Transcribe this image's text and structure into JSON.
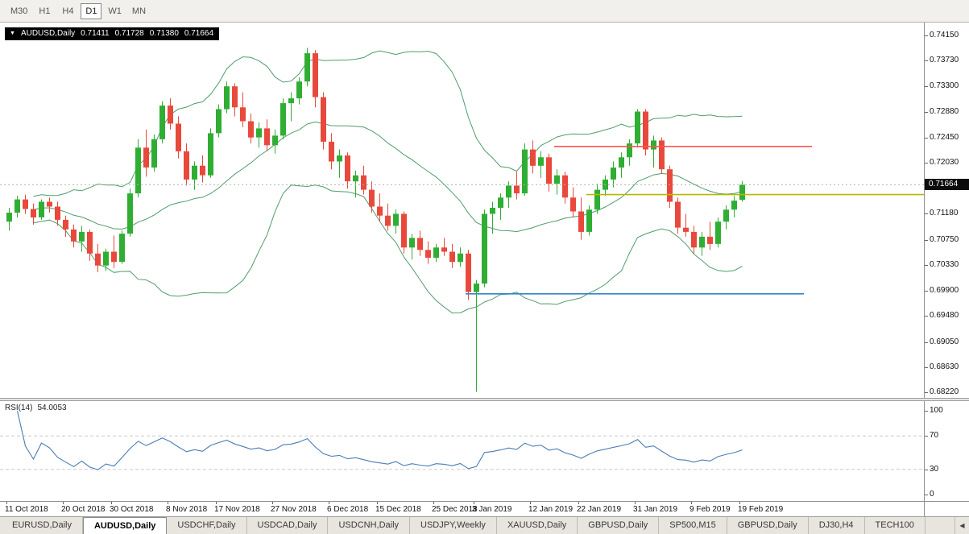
{
  "toolbar": {
    "timeframes": [
      "M30",
      "H1",
      "H4",
      "D1",
      "W1",
      "MN"
    ],
    "active_timeframe": "D1"
  },
  "chart_header": {
    "dropdown_icon": "▼",
    "symbol": "AUDUSD,Daily",
    "open": "0.71411",
    "high": "0.71728",
    "low": "0.71380",
    "close": "0.71664"
  },
  "rsi_panel": {
    "name": "RSI(14)",
    "value": "54.0053"
  },
  "tabs": {
    "items": [
      "EURUSD,Daily",
      "AUDUSD,Daily",
      "USDCHF,Daily",
      "USDCAD,Daily",
      "USDCNH,Daily",
      "USDJPY,Weekly",
      "XAUUSD,Daily",
      "GBPUSD,Daily",
      "SP500,M15",
      "GBPUSD,Daily",
      "DJ30,H4",
      "TECH100"
    ],
    "active_index": 1,
    "active": "AUDUSD,Daily",
    "scroll_left_icon": "◀"
  },
  "chart_data": {
    "type": "candlestick",
    "symbol": "AUDUSD",
    "timeframe": "Daily",
    "ylim": [
      0.6812,
      0.7436
    ],
    "layout": {
      "x0": 8,
      "dx": 10,
      "body_width": 7
    },
    "colors": {
      "up": "#2fae33",
      "down": "#e8493c"
    },
    "y_axis": {
      "labels": [
        "0.74150",
        "0.73730",
        "0.73300",
        "0.72880",
        "0.72450",
        "0.72030",
        "0.71180",
        "0.70750",
        "0.70330",
        "0.69900",
        "0.69480",
        "0.69050",
        "0.68630",
        "0.68220"
      ],
      "current_price": "0.71664"
    },
    "x_axis": {
      "labels": [
        {
          "i": 0,
          "text": "11 Oct 2018"
        },
        {
          "i": 7,
          "text": "20 Oct 2018"
        },
        {
          "i": 13,
          "text": "30 Oct 2018"
        },
        {
          "i": 20,
          "text": "8 Nov 2018"
        },
        {
          "i": 26,
          "text": "17 Nov 2018"
        },
        {
          "i": 33,
          "text": "27 Nov 2018"
        },
        {
          "i": 40,
          "text": "6 Dec 2018"
        },
        {
          "i": 46,
          "text": "15 Dec 2018"
        },
        {
          "i": 53,
          "text": "25 Dec 2018"
        },
        {
          "i": 58,
          "text": "3 Jan 2019"
        },
        {
          "i": 65,
          "text": "12 Jan 2019"
        },
        {
          "i": 71,
          "text": "22 Jan 2019"
        },
        {
          "i": 78,
          "text": "31 Jan 2019"
        },
        {
          "i": 85,
          "text": "9 Feb 2019"
        },
        {
          "i": 91,
          "text": "19 Feb 2019"
        }
      ]
    },
    "candles": [
      [
        0.7105,
        0.7128,
        0.709,
        0.712
      ],
      [
        0.712,
        0.7148,
        0.7112,
        0.7142
      ],
      [
        0.7142,
        0.715,
        0.7118,
        0.7126
      ],
      [
        0.7126,
        0.7135,
        0.71,
        0.7112
      ],
      [
        0.7112,
        0.7142,
        0.7108,
        0.7138
      ],
      [
        0.7138,
        0.7145,
        0.712,
        0.713
      ],
      [
        0.713,
        0.7138,
        0.7098,
        0.7108
      ],
      [
        0.7108,
        0.7115,
        0.708,
        0.7092
      ],
      [
        0.7092,
        0.71,
        0.7062,
        0.7072
      ],
      [
        0.7072,
        0.7098,
        0.7055,
        0.7088
      ],
      [
        0.7088,
        0.7092,
        0.704,
        0.7052
      ],
      [
        0.7052,
        0.7068,
        0.7021,
        0.7032
      ],
      [
        0.7032,
        0.706,
        0.7023,
        0.7055
      ],
      [
        0.7055,
        0.7082,
        0.7028,
        0.7038
      ],
      [
        0.7038,
        0.709,
        0.7035,
        0.7085
      ],
      [
        0.7085,
        0.716,
        0.708,
        0.7152
      ],
      [
        0.7152,
        0.7242,
        0.7145,
        0.7228
      ],
      [
        0.7228,
        0.7258,
        0.718,
        0.7195
      ],
      [
        0.7195,
        0.725,
        0.7188,
        0.7242
      ],
      [
        0.7242,
        0.7305,
        0.7235,
        0.7298
      ],
      [
        0.7298,
        0.731,
        0.7258,
        0.7268
      ],
      [
        0.7268,
        0.728,
        0.721,
        0.7222
      ],
      [
        0.7222,
        0.7235,
        0.7165,
        0.7175
      ],
      [
        0.7175,
        0.7205,
        0.7158,
        0.7198
      ],
      [
        0.7198,
        0.7215,
        0.717,
        0.7182
      ],
      [
        0.7182,
        0.726,
        0.7178,
        0.7252
      ],
      [
        0.7252,
        0.73,
        0.7245,
        0.7292
      ],
      [
        0.7292,
        0.7338,
        0.7285,
        0.733
      ],
      [
        0.733,
        0.7335,
        0.728,
        0.7295
      ],
      [
        0.7295,
        0.732,
        0.7262,
        0.7272
      ],
      [
        0.7272,
        0.7285,
        0.7235,
        0.7245
      ],
      [
        0.7245,
        0.727,
        0.7228,
        0.726
      ],
      [
        0.726,
        0.7275,
        0.7222,
        0.7232
      ],
      [
        0.7232,
        0.7258,
        0.7218,
        0.7248
      ],
      [
        0.7248,
        0.731,
        0.7242,
        0.7302
      ],
      [
        0.7302,
        0.732,
        0.7272,
        0.731
      ],
      [
        0.731,
        0.7345,
        0.73,
        0.7338
      ],
      [
        0.7338,
        0.7394,
        0.733,
        0.7385
      ],
      [
        0.7385,
        0.739,
        0.7295,
        0.7312
      ],
      [
        0.7312,
        0.732,
        0.7225,
        0.7238
      ],
      [
        0.7238,
        0.7252,
        0.7192,
        0.7205
      ],
      [
        0.7205,
        0.7225,
        0.7178,
        0.7215
      ],
      [
        0.7215,
        0.722,
        0.716,
        0.7172
      ],
      [
        0.7172,
        0.719,
        0.7145,
        0.7182
      ],
      [
        0.7182,
        0.7198,
        0.715,
        0.7158
      ],
      [
        0.7158,
        0.7172,
        0.712,
        0.713
      ],
      [
        0.713,
        0.7152,
        0.7105,
        0.7115
      ],
      [
        0.7115,
        0.7135,
        0.709,
        0.7098
      ],
      [
        0.7098,
        0.7125,
        0.7085,
        0.7118
      ],
      [
        0.7118,
        0.7122,
        0.7052,
        0.7062
      ],
      [
        0.7062,
        0.7085,
        0.7042,
        0.7078
      ],
      [
        0.7078,
        0.709,
        0.7048,
        0.7058
      ],
      [
        0.7058,
        0.7072,
        0.7035,
        0.7045
      ],
      [
        0.7045,
        0.7068,
        0.7038,
        0.7062
      ],
      [
        0.7062,
        0.7078,
        0.7048,
        0.7055
      ],
      [
        0.7055,
        0.7068,
        0.7028,
        0.7038
      ],
      [
        0.7038,
        0.7062,
        0.703,
        0.7052
      ],
      [
        0.7052,
        0.7058,
        0.6975,
        0.6988
      ],
      [
        0.6988,
        0.7008,
        0.6822,
        0.7002
      ],
      [
        0.7002,
        0.7125,
        0.6996,
        0.7118
      ],
      [
        0.7118,
        0.7138,
        0.7085,
        0.7128
      ],
      [
        0.7128,
        0.7152,
        0.7108,
        0.7145
      ],
      [
        0.7145,
        0.7172,
        0.7128,
        0.7165
      ],
      [
        0.7165,
        0.7188,
        0.7142,
        0.7152
      ],
      [
        0.7152,
        0.7235,
        0.7148,
        0.7225
      ],
      [
        0.7225,
        0.724,
        0.7185,
        0.7198
      ],
      [
        0.7198,
        0.7222,
        0.7178,
        0.7212
      ],
      [
        0.7212,
        0.7218,
        0.7155,
        0.7168
      ],
      [
        0.7168,
        0.7192,
        0.715,
        0.7182
      ],
      [
        0.7182,
        0.7188,
        0.7135,
        0.7145
      ],
      [
        0.7145,
        0.7162,
        0.7112,
        0.7122
      ],
      [
        0.7122,
        0.7145,
        0.7075,
        0.7088
      ],
      [
        0.7088,
        0.7132,
        0.7082,
        0.7125
      ],
      [
        0.7125,
        0.7168,
        0.7118,
        0.7158
      ],
      [
        0.7158,
        0.7182,
        0.7148,
        0.7175
      ],
      [
        0.7175,
        0.7205,
        0.7162,
        0.7195
      ],
      [
        0.7195,
        0.722,
        0.7178,
        0.7212
      ],
      [
        0.7212,
        0.7242,
        0.7198,
        0.7235
      ],
      [
        0.7235,
        0.7292,
        0.7228,
        0.7288
      ],
      [
        0.7288,
        0.7292,
        0.7215,
        0.7225
      ],
      [
        0.7225,
        0.7248,
        0.7195,
        0.724
      ],
      [
        0.724,
        0.7245,
        0.7185,
        0.7192
      ],
      [
        0.7192,
        0.7198,
        0.7128,
        0.7138
      ],
      [
        0.7138,
        0.7145,
        0.7085,
        0.7095
      ],
      [
        0.7095,
        0.7118,
        0.708,
        0.7088
      ],
      [
        0.7088,
        0.7098,
        0.7052,
        0.7062
      ],
      [
        0.7062,
        0.7088,
        0.7048,
        0.708
      ],
      [
        0.708,
        0.7105,
        0.7058,
        0.7068
      ],
      [
        0.7068,
        0.7112,
        0.7062,
        0.7105
      ],
      [
        0.7105,
        0.7132,
        0.7092,
        0.7125
      ],
      [
        0.7125,
        0.7148,
        0.7112,
        0.714
      ],
      [
        0.71411,
        0.71728,
        0.7138,
        0.71664
      ]
    ],
    "overlays": {
      "bollinger": {
        "period": 20,
        "deviation": 2,
        "color": "#4f9d6b"
      },
      "hlines": [
        {
          "name": "resistance-line-red",
          "price": 0.723,
          "from": 68,
          "to": 100,
          "color": "#ff564a"
        },
        {
          "name": "support-line-yellow",
          "price": 0.715,
          "from": 72,
          "to": 114,
          "color": "#b7b700"
        },
        {
          "name": "support-line-blue",
          "price": 0.6985,
          "from": 57,
          "to": 99,
          "color": "#3585c6"
        }
      ],
      "current_price_line": {
        "price": 0.71664,
        "style": "dashed",
        "color": "#b0b0b0"
      }
    },
    "rsi": {
      "period": 14,
      "current": 54.0053,
      "levels": [
        70,
        30
      ],
      "axis_labels": [
        "100",
        "70",
        "30",
        "0"
      ],
      "color": "#4a7db5"
    }
  }
}
